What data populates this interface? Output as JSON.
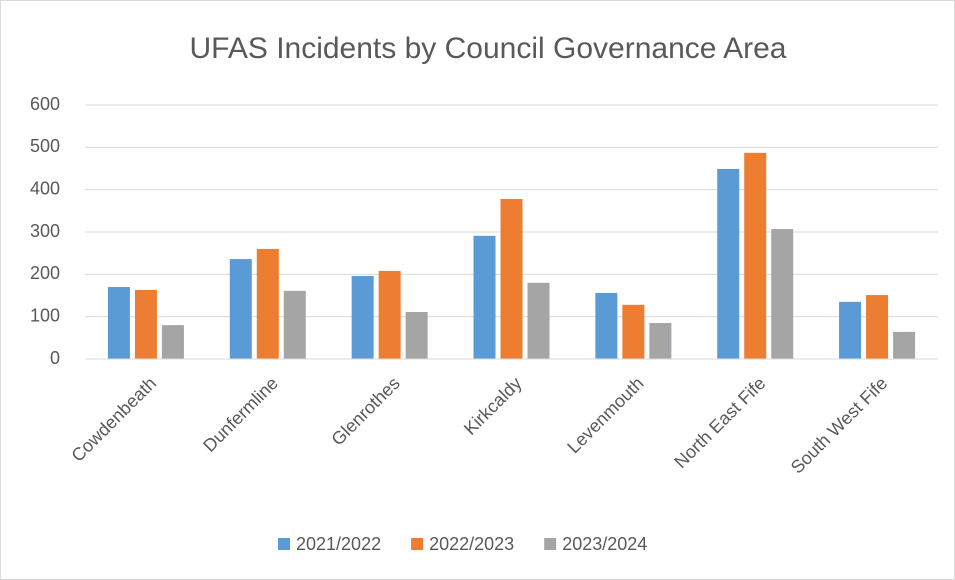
{
  "chart_data": {
    "type": "bar",
    "title": "UFAS Incidents by Council Governance Area",
    "categories": [
      "Cowdenbeath",
      "Dunfermline",
      "Glenrothes",
      "Kirkcaldy",
      "Levenmouth",
      "North East Fife",
      "South West Fife"
    ],
    "series": [
      {
        "name": "2021/2022",
        "color": "#5b9bd5",
        "values": [
          170,
          236,
          196,
          291,
          156,
          449,
          135
        ]
      },
      {
        "name": "2022/2023",
        "color": "#ed7d31",
        "values": [
          163,
          260,
          208,
          378,
          128,
          487,
          151
        ]
      },
      {
        "name": "2023/2024",
        "color": "#a5a5a5",
        "values": [
          80,
          161,
          111,
          180,
          85,
          307,
          64
        ]
      }
    ],
    "ylim": [
      0,
      600
    ],
    "yticks": [
      0,
      100,
      200,
      300,
      400,
      500,
      600
    ],
    "grid": true,
    "legend": "bottom"
  }
}
